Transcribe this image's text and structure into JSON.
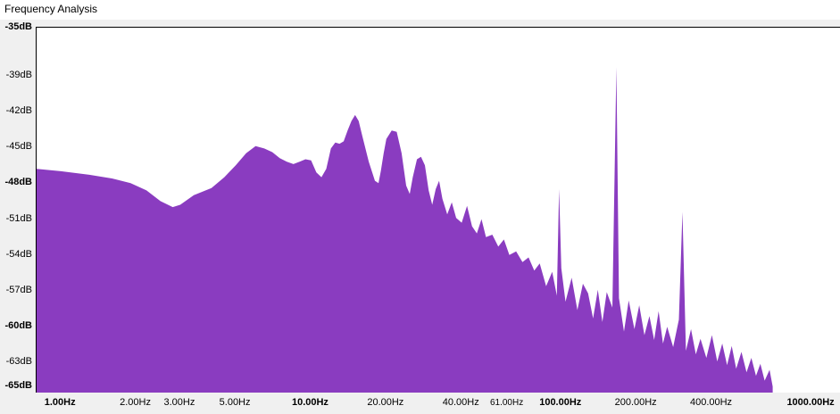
{
  "window": {
    "title": "Frequency Analysis"
  },
  "chart_data": {
    "type": "area",
    "title": "",
    "xlabel": "",
    "ylabel": "",
    "x_scale": "log",
    "xlim": [
      0.8,
      1300
    ],
    "ylim": [
      -65.5,
      -35
    ],
    "color": "#8a3cc0",
    "y_ticks": [
      {
        "value": -35,
        "label": "-35dB",
        "bold": true
      },
      {
        "value": -39,
        "label": "-39dB",
        "bold": false
      },
      {
        "value": -42,
        "label": "-42dB",
        "bold": false
      },
      {
        "value": -45,
        "label": "-45dB",
        "bold": false
      },
      {
        "value": -48,
        "label": "-48dB",
        "bold": true
      },
      {
        "value": -51,
        "label": "-51dB",
        "bold": false
      },
      {
        "value": -54,
        "label": "-54dB",
        "bold": false
      },
      {
        "value": -57,
        "label": "-57dB",
        "bold": false
      },
      {
        "value": -60,
        "label": "-60dB",
        "bold": true
      },
      {
        "value": -63,
        "label": "-63dB",
        "bold": false
      },
      {
        "value": -65,
        "label": "-65dB",
        "bold": true
      }
    ],
    "x_ticks": [
      {
        "value": 1,
        "label": "1.00Hz",
        "bold": true,
        "small": false
      },
      {
        "value": 2,
        "label": "2.00Hz",
        "bold": false,
        "small": false
      },
      {
        "value": 3,
        "label": "3.00Hz",
        "bold": false,
        "small": false
      },
      {
        "value": 5,
        "label": "5.00Hz",
        "bold": false,
        "small": false
      },
      {
        "value": 10,
        "label": "10.00Hz",
        "bold": true,
        "small": false
      },
      {
        "value": 20,
        "label": "20.00Hz",
        "bold": false,
        "small": false
      },
      {
        "value": 40,
        "label": "40.00Hz",
        "bold": false,
        "small": false
      },
      {
        "value": 61,
        "label": "61.00Hz",
        "bold": false,
        "small": true
      },
      {
        "value": 100,
        "label": "100.00Hz",
        "bold": true,
        "small": false
      },
      {
        "value": 200,
        "label": "200.00Hz",
        "bold": false,
        "small": false
      },
      {
        "value": 400,
        "label": "400.00Hz",
        "bold": false,
        "small": false
      },
      {
        "value": 1000,
        "label": "1000.00Hz",
        "bold": true,
        "small": false
      }
    ],
    "points": [
      [
        0.8,
        -46.8
      ],
      [
        1.0,
        -47.0
      ],
      [
        1.3,
        -47.3
      ],
      [
        1.6,
        -47.6
      ],
      [
        1.9,
        -48.0
      ],
      [
        2.2,
        -48.6
      ],
      [
        2.5,
        -49.5
      ],
      [
        2.8,
        -50.0
      ],
      [
        3.0,
        -49.8
      ],
      [
        3.4,
        -49.0
      ],
      [
        4.0,
        -48.4
      ],
      [
        4.5,
        -47.5
      ],
      [
        5.0,
        -46.5
      ],
      [
        5.5,
        -45.5
      ],
      [
        6.0,
        -44.9
      ],
      [
        6.5,
        -45.1
      ],
      [
        7.0,
        -45.4
      ],
      [
        7.5,
        -45.9
      ],
      [
        8.0,
        -46.2
      ],
      [
        8.5,
        -46.4
      ],
      [
        9.0,
        -46.2
      ],
      [
        9.5,
        -46.0
      ],
      [
        10.0,
        -46.1
      ],
      [
        10.5,
        -47.1
      ],
      [
        11.0,
        -47.5
      ],
      [
        11.5,
        -46.8
      ],
      [
        12.0,
        -45.1
      ],
      [
        12.5,
        -44.6
      ],
      [
        13.0,
        -44.7
      ],
      [
        13.5,
        -44.5
      ],
      [
        14.0,
        -43.6
      ],
      [
        14.5,
        -42.8
      ],
      [
        15.0,
        -42.3
      ],
      [
        15.5,
        -42.8
      ],
      [
        16.0,
        -44.0
      ],
      [
        17.0,
        -46.2
      ],
      [
        18.0,
        -47.8
      ],
      [
        18.6,
        -48.0
      ],
      [
        19.0,
        -47.0
      ],
      [
        19.5,
        -45.5
      ],
      [
        20.0,
        -44.3
      ],
      [
        21.0,
        -43.6
      ],
      [
        22.0,
        -43.7
      ],
      [
        23.0,
        -45.5
      ],
      [
        24.0,
        -48.2
      ],
      [
        24.8,
        -48.9
      ],
      [
        25.5,
        -47.5
      ],
      [
        26.5,
        -46.0
      ],
      [
        27.5,
        -45.8
      ],
      [
        28.5,
        -46.5
      ],
      [
        29.5,
        -48.6
      ],
      [
        30.5,
        -49.8
      ],
      [
        31.5,
        -48.5
      ],
      [
        32.5,
        -47.8
      ],
      [
        33.5,
        -49.3
      ],
      [
        35.0,
        -50.6
      ],
      [
        36.5,
        -49.6
      ],
      [
        38.0,
        -50.9
      ],
      [
        40.0,
        -51.3
      ],
      [
        42.0,
        -49.9
      ],
      [
        44.0,
        -51.6
      ],
      [
        46.0,
        -52.2
      ],
      [
        48.0,
        -51.0
      ],
      [
        50.0,
        -52.5
      ],
      [
        53.0,
        -52.3
      ],
      [
        56.0,
        -53.3
      ],
      [
        59.0,
        -52.7
      ],
      [
        62.0,
        -54.0
      ],
      [
        66.0,
        -53.7
      ],
      [
        70.0,
        -54.6
      ],
      [
        74.0,
        -54.2
      ],
      [
        78.0,
        -55.3
      ],
      [
        82.0,
        -54.7
      ],
      [
        87.0,
        -56.6
      ],
      [
        92.0,
        -55.4
      ],
      [
        96.0,
        -57.4
      ],
      [
        98.0,
        -48.5
      ],
      [
        100.0,
        -55.1
      ],
      [
        104.0,
        -57.9
      ],
      [
        110.0,
        -55.9
      ],
      [
        116.0,
        -58.6
      ],
      [
        122.0,
        -56.4
      ],
      [
        128.0,
        -57.2
      ],
      [
        134.0,
        -59.3
      ],
      [
        140.0,
        -56.9
      ],
      [
        146.0,
        -59.6
      ],
      [
        152.0,
        -57.1
      ],
      [
        160.0,
        -58.4
      ],
      [
        166.0,
        -38.3
      ],
      [
        170.0,
        -57.6
      ],
      [
        178.0,
        -60.4
      ],
      [
        186.0,
        -57.8
      ],
      [
        196.0,
        -60.2
      ],
      [
        205.0,
        -58.2
      ],
      [
        215.0,
        -60.7
      ],
      [
        225.0,
        -59.1
      ],
      [
        235.0,
        -61.1
      ],
      [
        245.0,
        -58.7
      ],
      [
        255.0,
        -61.4
      ],
      [
        265.0,
        -60.0
      ],
      [
        280.0,
        -61.7
      ],
      [
        295.0,
        -59.4
      ],
      [
        305.0,
        -50.4
      ],
      [
        315.0,
        -62.0
      ],
      [
        330.0,
        -60.2
      ],
      [
        345.0,
        -62.3
      ],
      [
        360.0,
        -61.0
      ],
      [
        380.0,
        -62.6
      ],
      [
        400.0,
        -60.7
      ],
      [
        420.0,
        -62.9
      ],
      [
        440.0,
        -61.4
      ],
      [
        460.0,
        -63.2
      ],
      [
        480.0,
        -61.6
      ],
      [
        500.0,
        -63.5
      ],
      [
        525.0,
        -62.1
      ],
      [
        550.0,
        -63.8
      ],
      [
        575.0,
        -62.6
      ],
      [
        600.0,
        -64.1
      ],
      [
        625.0,
        -63.1
      ],
      [
        650.0,
        -64.5
      ],
      [
        680.0,
        -63.6
      ],
      [
        700.0,
        -65.0
      ]
    ]
  }
}
